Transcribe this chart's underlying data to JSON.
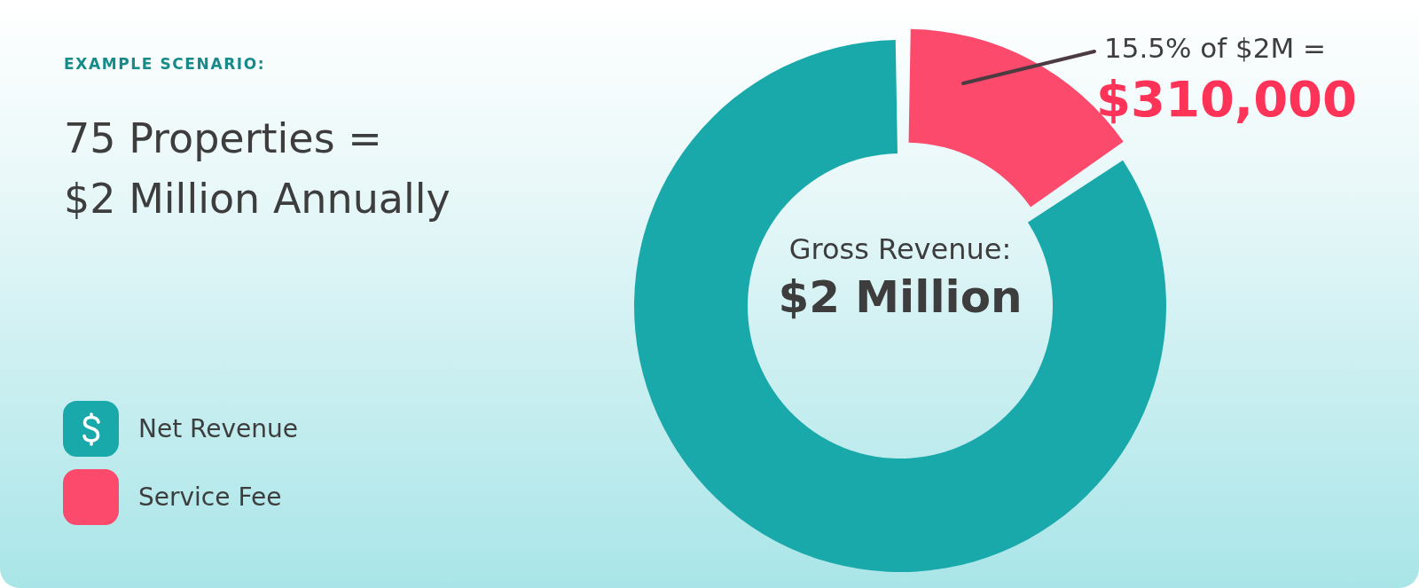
{
  "chart_data": {
    "type": "donut",
    "subtitle": "EXAMPLE SCENARIO:",
    "title": "75 Properties =\n$2 Million Annually",
    "categories": [
      "Net Revenue",
      "Service Fee"
    ],
    "values": [
      84.5,
      15.5
    ],
    "colors": [
      "#1aa9ab",
      "#fb4a6c"
    ],
    "legend": "bottom left",
    "annotations": [
      "Gross Revenue:",
      "$2 Million",
      "15.5% of $2M =",
      "$310,000"
    ]
  }
}
